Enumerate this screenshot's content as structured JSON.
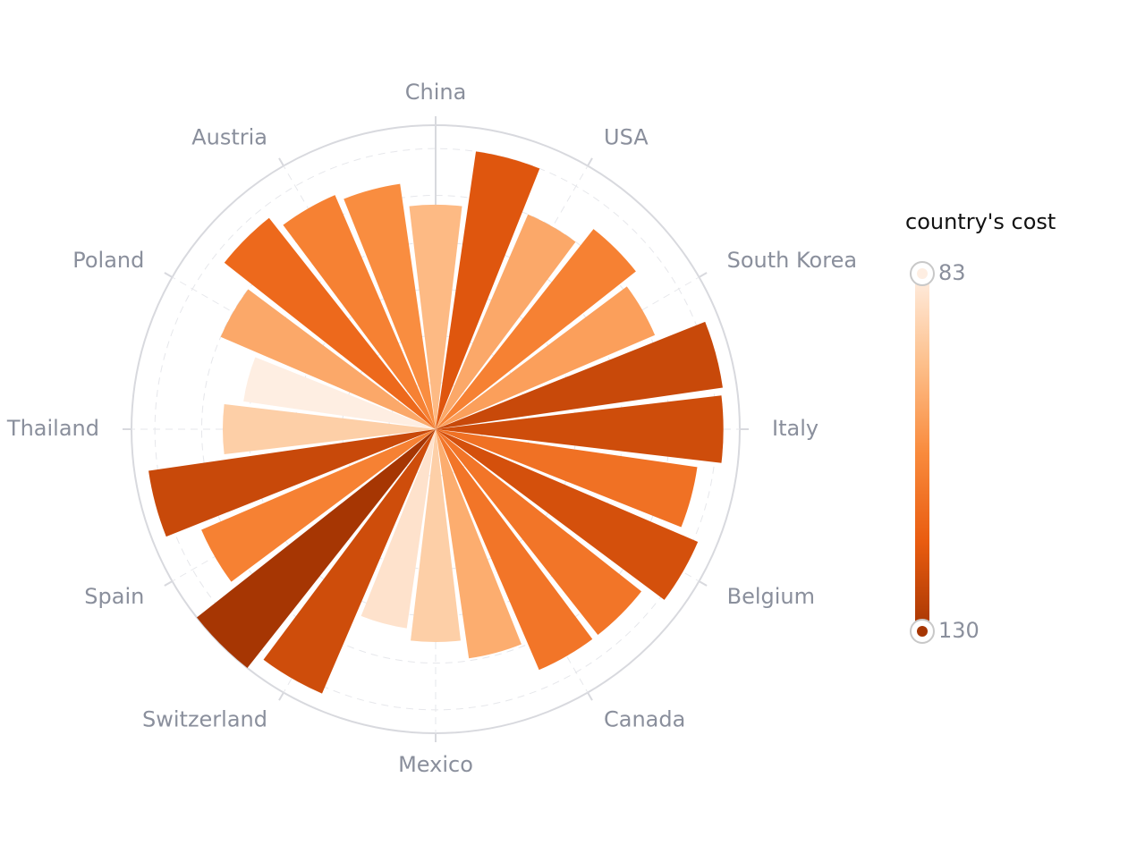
{
  "chart_data": {
    "type": "polar-bar",
    "categories": [
      "China",
      null,
      "USA",
      null,
      "South Korea",
      null,
      "Italy",
      null,
      "Belgium",
      null,
      "Canada",
      null,
      "Mexico",
      null,
      "Switzerland",
      null,
      "Spain",
      null,
      "Thailand",
      null,
      "Poland",
      null,
      "Austria",
      null
    ],
    "values": [
      96,
      120,
      100,
      109,
      102,
      124,
      123,
      113,
      122,
      112,
      112,
      99,
      91,
      86,
      123,
      130,
      109,
      124,
      91,
      83,
      100,
      115,
      109,
      106
    ],
    "ylim": [
      0,
      130
    ],
    "yticks": [
      0,
      20,
      40,
      60,
      80,
      100,
      120
    ],
    "visual_map": {
      "title": "country's cost",
      "min": 83,
      "max": 130,
      "colors": [
        "#feeee2",
        "#fdc08c",
        "#f98b3d",
        "#e95c10",
        "#a63603"
      ]
    }
  }
}
